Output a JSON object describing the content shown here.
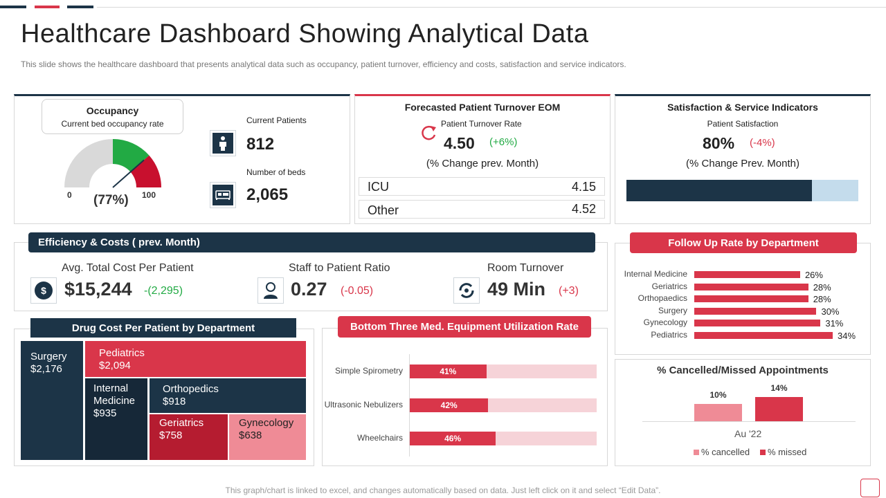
{
  "header": {
    "title": "Healthcare Dashboard Showing Analytical Data",
    "subtitle": "This slide shows the healthcare dashboard that presents analytical data such as occupancy, patient turnover, efficiency and costs, satisfaction and service indicators."
  },
  "occupancy": {
    "title": "Occupancy",
    "subtitle": "Current bed occupancy rate",
    "gauge_min": "0",
    "gauge_max": "100",
    "gauge_value": "(77%)",
    "gauge_fraction": 0.77,
    "current_patients_label": "Current Patients",
    "current_patients_value": "812",
    "beds_label": "Number of beds",
    "beds_value": "2,065"
  },
  "turnover": {
    "title": "Forecasted Patient Turnover EOM",
    "rate_label": "Patient Turnover Rate",
    "rate_value": "4.50",
    "rate_change": "(+6%)",
    "change_note": "(% Change prev. Month)",
    "rows": [
      {
        "label": "ICU",
        "value": "4.15"
      },
      {
        "label": "Other",
        "value": "4.52"
      }
    ]
  },
  "satisfaction": {
    "title": "Satisfaction & Service Indicators",
    "label": "Patient Satisfaction",
    "value": "80%",
    "change": "(-4%)",
    "change_note": "(% Change Prev. Month)",
    "fill_fraction": 0.8
  },
  "efficiency": {
    "title": "Efficiency & Costs ( prev. Month)",
    "items": [
      {
        "label": "Avg. Total Cost Per Patient",
        "value": "$15,244",
        "change": "-(2,295)"
      },
      {
        "label": "Staff to Patient Ratio",
        "value": "0.27",
        "change": "(-0.05)"
      },
      {
        "label": "Room Turnover",
        "value": "49 Min",
        "change": "(+3)"
      }
    ]
  },
  "follow_up": {
    "title": "Follow Up Rate by Department",
    "chart_data": {
      "type": "bar",
      "orientation": "horizontal",
      "categories": [
        "Internal Medicine",
        "Geriatrics",
        "Orthopaedics",
        "Surgery",
        "Gynecology",
        "Pediatrics"
      ],
      "values": [
        26,
        28,
        28,
        30,
        31,
        34
      ],
      "labels": [
        "26%",
        "28%",
        "28%",
        "30%",
        "31%",
        "34%"
      ],
      "xlim": [
        0,
        34
      ]
    }
  },
  "drug_cost": {
    "title": "Drug Cost Per Patient by Department",
    "chart_data": {
      "type": "treemap",
      "items": [
        {
          "name": "Surgery",
          "value": "$2,176"
        },
        {
          "name": "Pediatrics",
          "value": "$2,094"
        },
        {
          "name": "Internal Medicine",
          "value": "$935"
        },
        {
          "name": "Orthopedics",
          "value": "$918"
        },
        {
          "name": "Geriatrics",
          "value": "$758"
        },
        {
          "name": "Gynecology",
          "value": "$638"
        }
      ]
    }
  },
  "equipment": {
    "title": "Bottom Three Med. Equipment Utilization Rate",
    "chart_data": {
      "type": "bar",
      "orientation": "horizontal",
      "categories": [
        "Simple Spirometry",
        "Ultrasonic Nebulizers",
        "Wheelchairs"
      ],
      "values": [
        41,
        42,
        46
      ],
      "labels": [
        "41%",
        "42%",
        "46%"
      ],
      "xlim": [
        0,
        100
      ]
    }
  },
  "cancelled": {
    "title": "% Cancelled/Missed Appointments",
    "chart_data": {
      "type": "bar",
      "categories": [
        "Au '22"
      ],
      "series": [
        {
          "name": "% cancelled",
          "values": [
            10
          ],
          "label": "10%"
        },
        {
          "name": "% missed",
          "values": [
            14
          ],
          "label": "14%"
        }
      ],
      "ylim": [
        0,
        14
      ]
    }
  },
  "footer": {
    "note": "This graph/chart is linked to excel, and changes automatically based on data. Just left click on it and select “Edit Data”."
  },
  "colors": {
    "dark": "#1c3447",
    "red": "#d9364a",
    "green": "#22aa44",
    "light_red": "#f6d3d8",
    "light_blue": "#c4dcec"
  }
}
